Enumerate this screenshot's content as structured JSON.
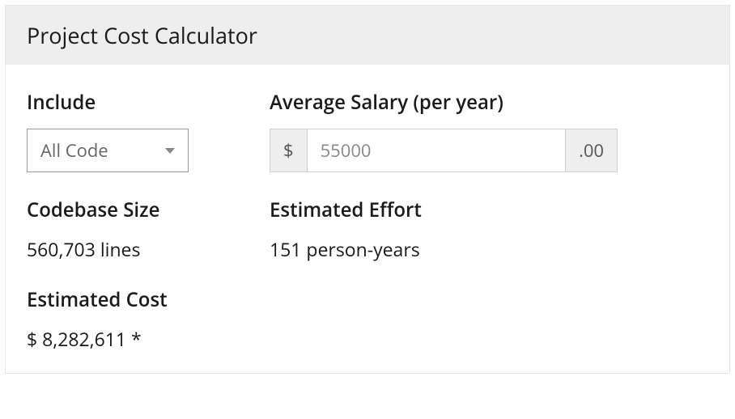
{
  "panel": {
    "title": "Project Cost Calculator"
  },
  "include": {
    "label": "Include",
    "selected": "All Code"
  },
  "salary": {
    "label": "Average Salary (per year)",
    "currency": "$",
    "value": "55000",
    "suffix": ".00"
  },
  "codebase": {
    "label": "Codebase Size",
    "value": "560,703 lines"
  },
  "effort": {
    "label": "Estimated Effort",
    "value": "151 person-years"
  },
  "cost": {
    "label": "Estimated Cost",
    "value": "$ 8,282,611 *"
  }
}
